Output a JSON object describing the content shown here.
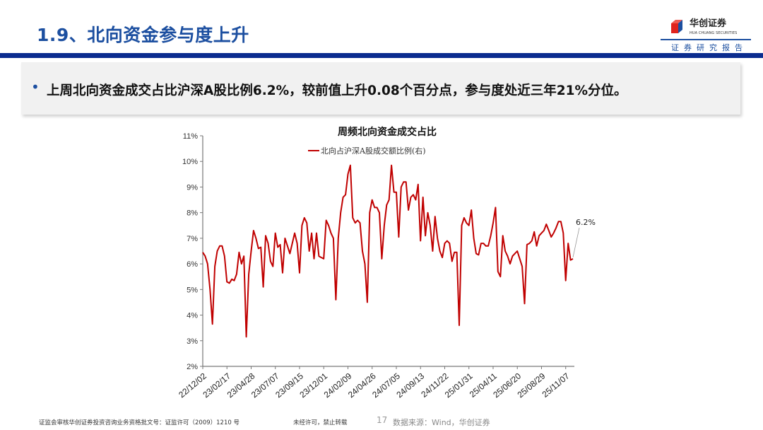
{
  "header": {
    "title": "1.9、北向资金参与度上升",
    "logo_name": "华创证券",
    "logo_sub": "HUA CHUANG SECURITIES",
    "report_label": "证券研究报告"
  },
  "bullet": {
    "text": "上周北向资金成交占比沪深A股比例6.2%，较前值上升0.08个百分点，参与度处近三年21%分位。"
  },
  "colors": {
    "accent": "#1c4fa0",
    "topbar": "#0b2c8f",
    "series": "#c00000"
  },
  "chart_data": {
    "type": "line",
    "title": "周频北向资金成交占比",
    "legend": [
      "北向占沪深A股成交额比例(右)"
    ],
    "legend_placement": "top-center",
    "ylim": [
      2,
      11
    ],
    "y_ticks": [
      "2%",
      "3%",
      "4%",
      "5%",
      "6%",
      "7%",
      "8%",
      "9%",
      "10%",
      "11%"
    ],
    "x_tick_labels": [
      "22/12/02",
      "23/02/17",
      "23/04/28",
      "23/07/07",
      "23/09/15",
      "23/12/01",
      "24/02/09",
      "24/04/26",
      "24/07/05",
      "24/09/13",
      "24/11/22",
      "25/01/31",
      "25/04/11",
      "25/06/20",
      "25/08/29",
      "25/11/07"
    ],
    "grid": false,
    "annotation": "6.2%",
    "series": [
      {
        "name": "北向占沪深A股成交额比例(右)",
        "values": [
          6.45,
          6.3,
          6.0,
          5.0,
          3.65,
          5.9,
          6.5,
          6.7,
          6.7,
          6.3,
          5.3,
          5.25,
          5.4,
          5.35,
          5.6,
          6.45,
          6.0,
          6.3,
          3.15,
          5.6,
          6.5,
          7.3,
          7.0,
          6.6,
          6.65,
          5.1,
          7.1,
          6.8,
          6.1,
          5.9,
          7.2,
          6.65,
          6.75,
          5.65,
          7.0,
          6.7,
          6.4,
          6.8,
          7.2,
          6.8,
          5.65,
          7.5,
          7.8,
          7.6,
          6.5,
          7.2,
          6.2,
          7.2,
          6.3,
          6.25,
          6.2,
          7.7,
          7.5,
          7.2,
          7.0,
          4.6,
          7.0,
          8.0,
          8.6,
          8.7,
          9.5,
          9.85,
          7.8,
          7.6,
          7.7,
          7.6,
          6.5,
          6.0,
          4.5,
          8.0,
          8.5,
          8.2,
          8.2,
          8.0,
          6.2,
          7.5,
          8.3,
          8.5,
          9.85,
          8.8,
          8.8,
          7.05,
          9.0,
          9.2,
          9.2,
          8.1,
          8.6,
          8.7,
          8.5,
          9.1,
          6.9,
          8.6,
          7.1,
          8.0,
          7.5,
          6.5,
          7.85,
          7.0,
          6.5,
          6.25,
          6.8,
          6.9,
          6.8,
          6.1,
          6.45,
          6.45,
          3.6,
          7.5,
          7.8,
          7.6,
          7.5,
          8.1,
          7.0,
          6.4,
          6.35,
          6.8,
          6.8,
          6.7,
          6.7,
          7.1,
          7.6,
          8.2,
          5.7,
          5.5,
          7.1,
          6.5,
          6.3,
          6.0,
          6.3,
          6.4,
          6.5,
          6.2,
          5.9,
          4.45,
          6.75,
          6.8,
          6.9,
          7.25,
          6.7,
          7.1,
          7.2,
          7.3,
          7.55,
          7.3,
          7.05,
          7.2,
          7.4,
          7.65,
          7.65,
          7.2,
          5.35,
          6.8,
          6.15,
          6.2
        ]
      }
    ]
  },
  "footer": {
    "license": "证监会审核华创证券投资咨询业务资格批文号：证监许可（2009）1210 号",
    "notice": "未经许可，禁止转载",
    "page": "17",
    "source": "数据来源：Wind，华创证券"
  }
}
